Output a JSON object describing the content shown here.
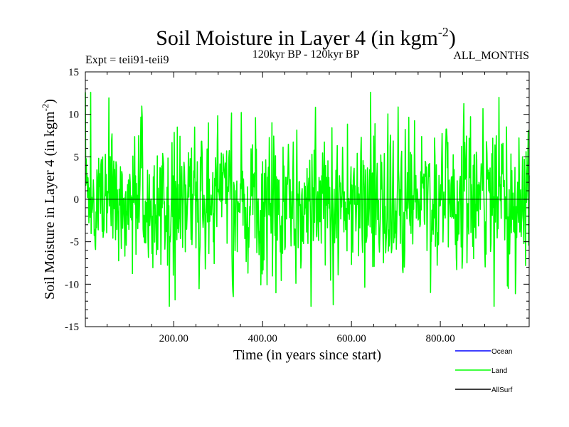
{
  "chart_data": {
    "type": "line",
    "title": "Soil Moisture in Layer 4 (in kgm",
    "title_sup": "-2",
    "title_end": ")",
    "subtitle_left": "Expt = teii91-teii9",
    "subtitle_center": "120kyr BP - 120kyr BP",
    "subtitle_right": "ALL_MONTHS",
    "xlabel": "Time (in years since start)",
    "ylabel": "Soil Moisture in Layer 4 (in kgm",
    "ylabel_sup": "-2",
    "ylabel_end": ")",
    "xlim": [
      1,
      1000
    ],
    "ylim": [
      -15,
      15
    ],
    "x_ticks": [
      {
        "value": 200,
        "label": "200.00"
      },
      {
        "value": 400,
        "label": "400.00"
      },
      {
        "value": 600,
        "label": "600.00"
      },
      {
        "value": 800,
        "label": "800.00"
      }
    ],
    "y_ticks": [
      {
        "value": 15,
        "label": "15"
      },
      {
        "value": 10,
        "label": "10"
      },
      {
        "value": 5,
        "label": "5"
      },
      {
        "value": 0,
        "label": "0"
      },
      {
        "value": -5,
        "label": "-5"
      },
      {
        "value": -10,
        "label": "-10"
      },
      {
        "value": -15,
        "label": "-15"
      }
    ],
    "grid": false,
    "legend_position": "bottom-right",
    "series": [
      {
        "name": "Ocean",
        "color": "#0000ff",
        "values": []
      },
      {
        "name": "Land",
        "color": "#00ff00",
        "values": [],
        "approx_range": [
          -12.6,
          12.6
        ],
        "approx_std": 4.2
      },
      {
        "name": "AllSurf",
        "color": "#000000",
        "values": []
      }
    ]
  }
}
